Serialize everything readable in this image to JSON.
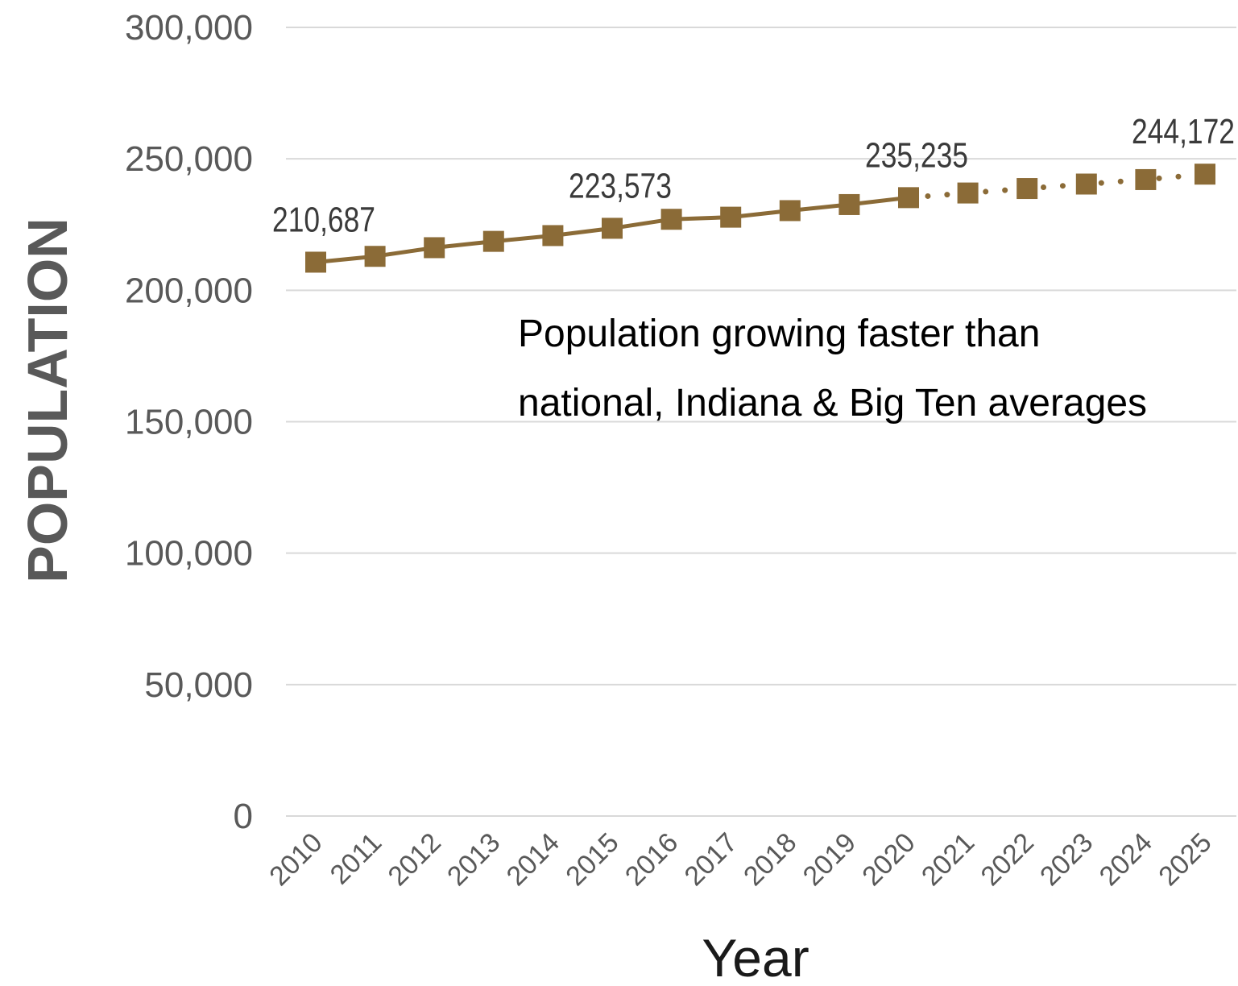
{
  "chart_data": {
    "type": "line",
    "xlabel": "Year",
    "ylabel": "POPULATION",
    "ylim": [
      0,
      300000
    ],
    "yticks": [
      "0",
      "50,000",
      "100,000",
      "150,000",
      "200,000",
      "250,000",
      "300,000"
    ],
    "grid": true,
    "categories": [
      "2010",
      "2011",
      "2012",
      "2013",
      "2014",
      "2015",
      "2016",
      "2017",
      "2018",
      "2019",
      "2020",
      "2021",
      "2022",
      "2023",
      "2024",
      "2025"
    ],
    "series": [
      {
        "values": [
          210687,
          212900,
          216200,
          218600,
          220800,
          223573,
          227000,
          227800,
          230300,
          232600,
          235235,
          237000,
          238700,
          240400,
          242100,
          244172
        ],
        "solid_through": "2020",
        "dotted_from": "2020",
        "color": "#8B6B37",
        "marker": "square"
      }
    ],
    "data_labels": [
      {
        "category": "2010",
        "text": "210,687"
      },
      {
        "category": "2015",
        "text": "223,573"
      },
      {
        "category": "2020",
        "text": "235,235"
      },
      {
        "category": "2025",
        "text": "244,172"
      }
    ],
    "annotation": [
      "Population growing faster than",
      "national, Indiana & Big Ten averages"
    ]
  }
}
